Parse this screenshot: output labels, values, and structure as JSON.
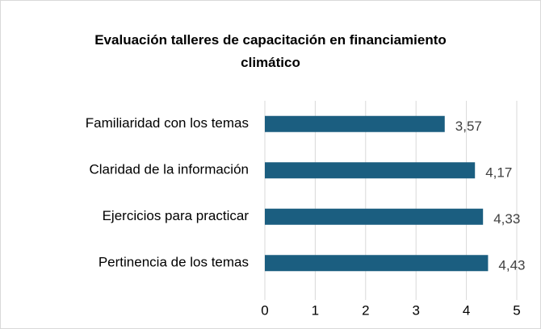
{
  "chart_data": {
    "type": "barh",
    "title": "Evaluación talleres de capacitación en financiamiento climático",
    "categories": [
      "Familiaridad con los temas",
      "Claridad de la información",
      "Ejercicios para practicar",
      "Pertinencia de los temas"
    ],
    "values": [
      3.57,
      4.17,
      4.33,
      4.43
    ],
    "value_labels": [
      "3,57",
      "4,17",
      "4,33",
      "4,43"
    ],
    "color": "#1b5e80",
    "xlim": [
      0,
      5
    ],
    "xticks": [
      0,
      1,
      2,
      3,
      4,
      5
    ],
    "grid": true
  }
}
